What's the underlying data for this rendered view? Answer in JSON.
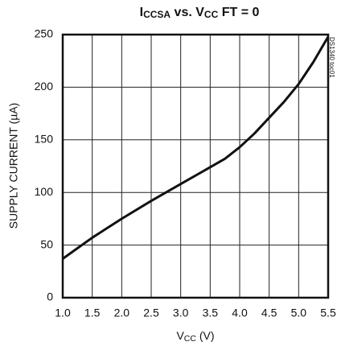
{
  "chart_data": {
    "type": "line",
    "title": [
      {
        "text": "I",
        "sub": false
      },
      {
        "text": "CCSA",
        "sub": true
      },
      {
        "text": " vs. V",
        "sub": false
      },
      {
        "text": "CC",
        "sub": true
      },
      {
        "text": " FT = 0",
        "sub": false
      }
    ],
    "x_label": [
      {
        "text": "V",
        "sub": false
      },
      {
        "text": "CC",
        "sub": true
      },
      {
        "text": " (V)",
        "sub": false
      }
    ],
    "y_label": "SUPPLY CURRENT (µA)",
    "note": "DS1340 toc01",
    "x": [
      1.0,
      1.25,
      1.5,
      1.75,
      2.0,
      2.5,
      3.0,
      3.5,
      3.75,
      4.0,
      4.25,
      4.5,
      4.75,
      5.0,
      5.25,
      5.5
    ],
    "series": [
      {
        "name": "ICCSA",
        "color": "#111111",
        "values": [
          37,
          47,
          57,
          66,
          75,
          92,
          108,
          124,
          132,
          143,
          156,
          171,
          186,
          203,
          224,
          248
        ]
      }
    ],
    "xlim": [
      1.0,
      5.5
    ],
    "xticks": [
      {
        "value": 1.0,
        "label": "1.0"
      },
      {
        "value": 1.5,
        "label": "1.5"
      },
      {
        "value": 2.0,
        "label": "2.0"
      },
      {
        "value": 2.5,
        "label": "2.5"
      },
      {
        "value": 3.0,
        "label": "3.0"
      },
      {
        "value": 3.5,
        "label": "3.5"
      },
      {
        "value": 4.0,
        "label": "4.0"
      },
      {
        "value": 4.5,
        "label": "4.5"
      },
      {
        "value": 5.0,
        "label": "5.0"
      },
      {
        "value": 5.5,
        "label": "5.5"
      }
    ],
    "ylim": [
      0,
      250
    ],
    "yticks": [
      0,
      50,
      100,
      150,
      200,
      250
    ],
    "grid": true
  }
}
